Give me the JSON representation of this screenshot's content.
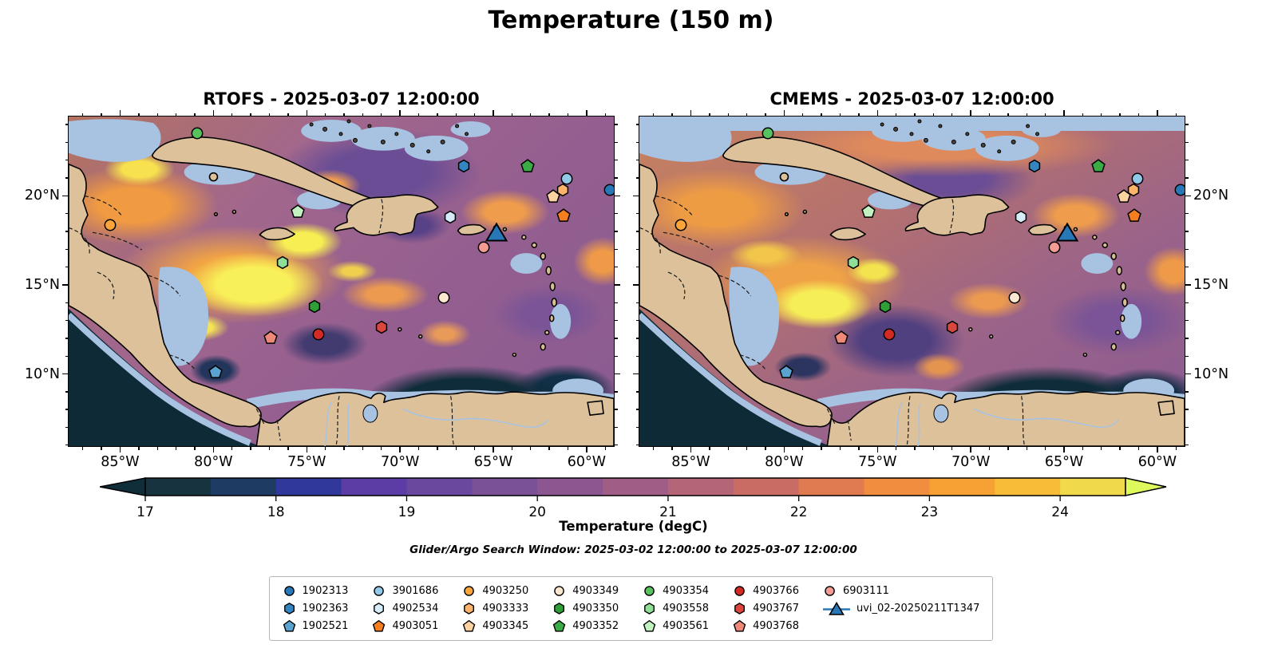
{
  "figure": {
    "title": "Temperature (150 m)"
  },
  "panels": [
    {
      "name": "RTOFS",
      "title": "RTOFS - 2025-03-07 12:00:00"
    },
    {
      "name": "CMEMS",
      "title": "CMEMS - 2025-03-07 12:00:00"
    }
  ],
  "axes": {
    "lon_min": -87.8,
    "lon_max": -58.5,
    "lat_min": 5.9,
    "lat_max": 24.5,
    "lon_major": [
      -85,
      -80,
      -75,
      -70,
      -65,
      -60
    ],
    "lon_labels": [
      "85°W",
      "80°W",
      "75°W",
      "70°W",
      "65°W",
      "60°W"
    ],
    "lat_major": [
      20,
      15,
      10
    ],
    "lat_labels": [
      "20°N",
      "15°N",
      "10°N"
    ]
  },
  "colorbar": {
    "label": "Temperature (degC)",
    "vmin": 17,
    "vmax": 24.5,
    "ticks": [
      17,
      18,
      19,
      20,
      21,
      22,
      23,
      24
    ],
    "segment_colors": [
      "#16333f",
      "#1e3c63",
      "#31389c",
      "#5b3da5",
      "#6a489e",
      "#7a5097",
      "#8c5691",
      "#a05e87",
      "#b46578",
      "#c86c64",
      "#e07a50",
      "#f08d3e",
      "#f7a134",
      "#f8bc38",
      "#f0d94a"
    ],
    "under_color": "#0f2e3a",
    "over_color": "#ddf95c"
  },
  "subtitle": "Glider/Argo Search Window: 2025-03-02 12:00:00 to 2025-03-07 12:00:00",
  "map_colors": {
    "land": "#ddc19b",
    "shallow": "#a8c2e2",
    "coastline": "#000000",
    "deep_pacific": "#0d2a36"
  },
  "legend": {
    "columns": [
      [
        {
          "label": "1902313",
          "shape": "circle",
          "color": "#2878b8"
        },
        {
          "label": "1902363",
          "shape": "hexagon",
          "color": "#3585c0"
        },
        {
          "label": "1902521",
          "shape": "pentagon",
          "color": "#5aa3d0"
        }
      ],
      [
        {
          "label": "3901686",
          "shape": "circle",
          "color": "#92c9e8"
        },
        {
          "label": "4902534",
          "shape": "hexagon",
          "color": "#d6ecf8"
        },
        {
          "label": "4903051",
          "shape": "pentagon",
          "color": "#f57e20"
        }
      ],
      [
        {
          "label": "4903250",
          "shape": "circle",
          "color": "#faa43a"
        },
        {
          "label": "4903333",
          "shape": "hexagon",
          "color": "#fbb46a"
        },
        {
          "label": "4903345",
          "shape": "pentagon",
          "color": "#fcd2a0"
        }
      ],
      [
        {
          "label": "4903349",
          "shape": "circle",
          "color": "#fce8d0"
        },
        {
          "label": "4903350",
          "shape": "hexagon",
          "color": "#2f9e38"
        },
        {
          "label": "4903352",
          "shape": "pentagon",
          "color": "#3bab45"
        }
      ],
      [
        {
          "label": "4903354",
          "shape": "circle",
          "color": "#56c35e"
        },
        {
          "label": "4903558",
          "shape": "hexagon",
          "color": "#8fe096"
        },
        {
          "label": "4903561",
          "shape": "pentagon",
          "color": "#c2f2c0"
        }
      ],
      [
        {
          "label": "4903766",
          "shape": "circle",
          "color": "#d42a26"
        },
        {
          "label": "4903767",
          "shape": "hexagon",
          "color": "#d9473f"
        },
        {
          "label": "4903768",
          "shape": "pentagon",
          "color": "#ee8878"
        }
      ],
      [
        {
          "label": "6903111",
          "shape": "circle",
          "color": "#f49b94"
        },
        {
          "label": "uvi_02-20250211T1347",
          "shape": "glider",
          "color": "#2878b8"
        }
      ]
    ]
  },
  "chart_data": {
    "type": "heatmap",
    "title": "Temperature (150 m)",
    "subtitle": "Glider/Argo Search Window: 2025-03-02 12:00:00 to 2025-03-07 12:00:00",
    "panels": [
      {
        "name": "RTOFS",
        "timestamp": "2025-03-07 12:00:00"
      },
      {
        "name": "CMEMS",
        "timestamp": "2025-03-07 12:00:00"
      }
    ],
    "colorbar": {
      "label": "Temperature (degC)",
      "ticks": [
        17,
        18,
        19,
        20,
        21,
        22,
        23,
        24
      ],
      "range": [
        17,
        24.5
      ],
      "extend": "both"
    },
    "x_axis": {
      "tick_labels": [
        "85°W",
        "80°W",
        "75°W",
        "70°W",
        "65°W",
        "60°W"
      ],
      "range": [
        -87.8,
        -58.5
      ]
    },
    "y_axis": {
      "tick_labels": [
        "20°N",
        "15°N",
        "10°N"
      ],
      "range": [
        5.9,
        24.5
      ]
    },
    "markers": [
      {
        "id": "4903354",
        "shape": "circle",
        "color": "#56c35e",
        "fx": 0.235,
        "fy": 0.051,
        "lon": -80.9,
        "lat": 23.6
      },
      {
        "id": "4903250",
        "shape": "circle",
        "color": "#faa43a",
        "fx": 0.076,
        "fy": 0.33,
        "lon": -85.6,
        "lat": 18.4
      },
      {
        "id": "4903561",
        "shape": "pentagon",
        "color": "#c2f2c0",
        "fx": 0.42,
        "fy": 0.289,
        "lon": -75.5,
        "lat": 19.1
      },
      {
        "id": "4903558",
        "shape": "hexagon",
        "color": "#8fe096",
        "fx": 0.393,
        "fy": 0.443,
        "lon": -76.3,
        "lat": 16.3
      },
      {
        "id": "1902363",
        "shape": "hexagon",
        "color": "#3585c0",
        "fx": 0.725,
        "fy": 0.149,
        "lon": -66.6,
        "lat": 21.7
      },
      {
        "id": "4903352",
        "shape": "pentagon",
        "color": "#3bab45",
        "fx": 0.842,
        "fy": 0.149,
        "lon": -63.1,
        "lat": 21.7
      },
      {
        "id": "3901686",
        "shape": "circle",
        "color": "#92c9e8",
        "fx": 0.914,
        "fy": 0.19,
        "lon": -61.0,
        "lat": 21.0
      },
      {
        "id": "4903333",
        "shape": "hexagon",
        "color": "#fbb46a",
        "fx": 0.906,
        "fy": 0.223,
        "lon": -61.2,
        "lat": 20.4
      },
      {
        "id": "4903345",
        "shape": "pentagon",
        "color": "#fcd2a0",
        "fx": 0.889,
        "fy": 0.242,
        "lon": -61.8,
        "lat": 20.0
      },
      {
        "id": "1902313",
        "shape": "circle",
        "color": "#2878b8",
        "fx": 0.992,
        "fy": 0.222,
        "lon": -58.7,
        "lat": 20.4
      },
      {
        "id": "4903051",
        "shape": "pentagon",
        "color": "#f57e20",
        "fx": 0.908,
        "fy": 0.301,
        "lon": -61.2,
        "lat": 18.9
      },
      {
        "id": "4902534",
        "shape": "hexagon",
        "color": "#d6ecf8",
        "fx": 0.7,
        "fy": 0.304,
        "lon": -67.3,
        "lat": 18.8
      },
      {
        "id": "uvi_02-20250211T1347",
        "shape": "glider",
        "color": "#2878b8",
        "fx": 0.785,
        "fy": 0.35,
        "lon": -64.8,
        "lat": 18.0
      },
      {
        "id": "6903111",
        "shape": "circle",
        "color": "#f49b94",
        "fx": 0.762,
        "fy": 0.398,
        "lon": -65.5,
        "lat": 17.1
      },
      {
        "id": "4903349",
        "shape": "circle",
        "color": "#fce8d0",
        "fx": 0.688,
        "fy": 0.549,
        "lon": -67.6,
        "lat": 14.3
      },
      {
        "id": "4903350",
        "shape": "hexagon",
        "color": "#2f9e38",
        "fx": 0.451,
        "fy": 0.576,
        "lon": -74.6,
        "lat": 13.8
      },
      {
        "id": "4903767",
        "shape": "hexagon",
        "color": "#d9473f",
        "fx": 0.574,
        "fy": 0.639,
        "lon": -71.0,
        "lat": 12.6
      },
      {
        "id": "4903766",
        "shape": "circle",
        "color": "#d42a26",
        "fx": 0.458,
        "fy": 0.66,
        "lon": -74.4,
        "lat": 12.2
      },
      {
        "id": "4903768",
        "shape": "pentagon",
        "color": "#ee8878",
        "fx": 0.371,
        "fy": 0.67,
        "lon": -76.9,
        "lat": 12.0
      },
      {
        "id": "1902521",
        "shape": "pentagon",
        "color": "#5aa3d0",
        "fx": 0.27,
        "fy": 0.774,
        "lon": -79.9,
        "lat": 10.1
      }
    ]
  }
}
